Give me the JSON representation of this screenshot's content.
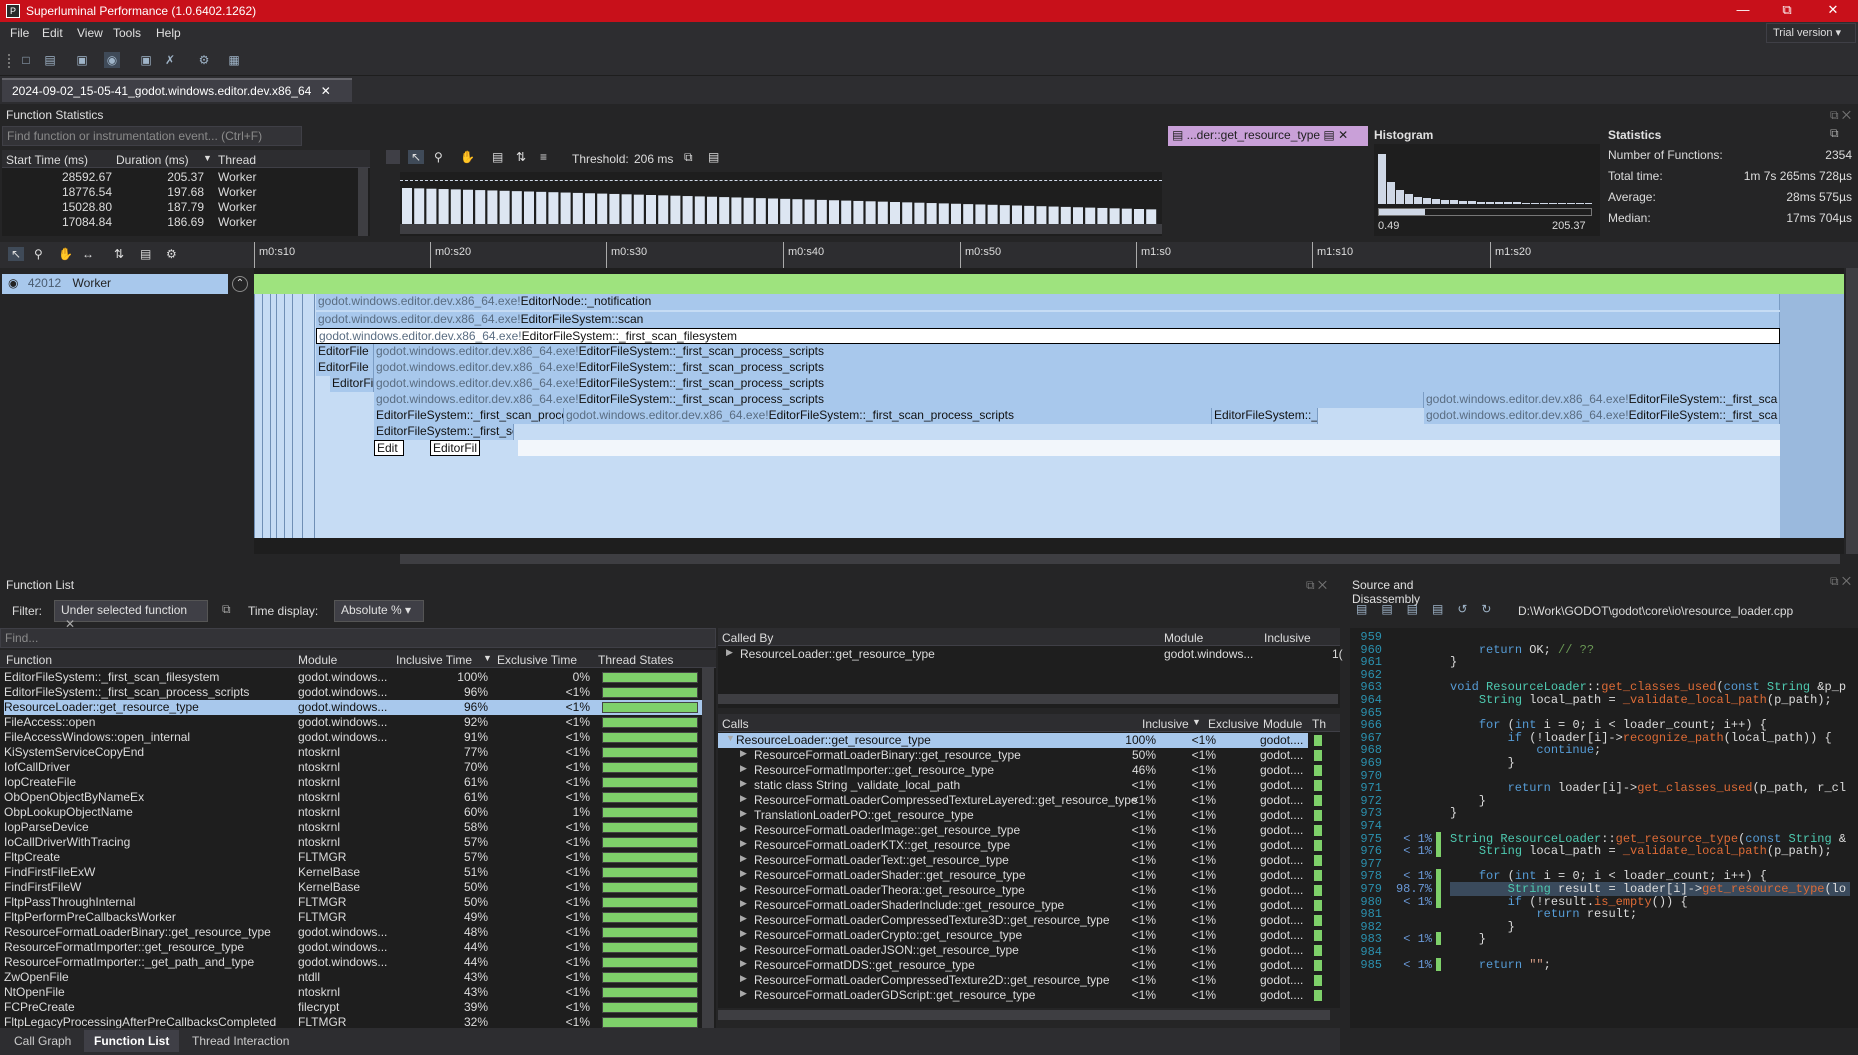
{
  "app": {
    "title": "Superluminal Performance (1.0.6402.1262)",
    "trial": "Trial version"
  },
  "menu": [
    "File",
    "Edit",
    "View",
    "Tools",
    "Help"
  ],
  "tab": {
    "label": "2024-09-02_15-05-41_godot.windows.editor.dev.x86_64"
  },
  "function_statistics": {
    "header": "Function Statistics",
    "search_placeholder": "Find function or instrumentation event... (Ctrl+F)",
    "columns": [
      "Start Time (ms)",
      "Duration (ms)",
      "Thread"
    ],
    "rows": [
      [
        "28592.67",
        "205.37",
        "Worker"
      ],
      [
        "18776.54",
        "197.68",
        "Worker"
      ],
      [
        "15028.80",
        "187.79",
        "Worker"
      ],
      [
        "17084.84",
        "186.69",
        "Worker"
      ]
    ],
    "threshold_label": "Threshold:",
    "threshold_value": "206 ms",
    "selected_fn": "...der::get_resource_type"
  },
  "histogram": {
    "title": "Histogram",
    "min": "0.49",
    "max": "205.37"
  },
  "statistics": {
    "title": "Statistics",
    "items": [
      [
        "Number of Functions:",
        "2354"
      ],
      [
        "Total time:",
        "1m 7s 265ms 728µs"
      ],
      [
        "Average:",
        "28ms 575µs"
      ],
      [
        "Median:",
        "17ms 704µs"
      ]
    ]
  },
  "timeline": {
    "ticks": [
      "m0:s10",
      "m0:s20",
      "m0:s30",
      "m0:s40",
      "m0:s50",
      "m1:s0",
      "m1:s10",
      "m1:s20"
    ],
    "thread_id": "42012",
    "thread_name": "Worker",
    "bars": [
      {
        "pre": "godot.windows.editor.dev.x86_64.exe!",
        "fn": "EditorNode::_notification"
      },
      {
        "pre": "godot.windows.editor.dev.x86_64.exe!",
        "fn": "EditorFileSystem::scan"
      },
      {
        "pre": "godot.windows.editor.dev.x86_64.exe!",
        "fn": "EditorFileSystem::_first_scan_filesystem"
      },
      {
        "pre": "godot.windows.editor.dev.x86_64.exe!",
        "fn": "EditorFileSystem::_first_scan_process_scripts"
      },
      {
        "pre": "godot.windows.editor.dev.x86_64.exe!",
        "fn": "EditorFileSystem::_first_scan_process_scripts"
      },
      {
        "pre": "godot.windows.editor.dev.x86_64.exe!",
        "fn": "EditorFileSystem::_first_scan_process_scripts"
      },
      {
        "pre": "godot.windows.editor.dev.x86_64.exe!",
        "fn": "EditorFileSystem::_first_scan_process_scripts"
      },
      {
        "pre": "godot.windows.editor.dev.x86_64.exe!",
        "fn": "EditorFileSystem::_first_scan_process_scripts"
      }
    ],
    "short": {
      "ef1": "EditorFile",
      "ef2": "EditorFile",
      "ef3": "EditorFi",
      "fsp": "EditorFileSystem::_first_scan_proce",
      "fs2": "EditorFileSystem::_",
      "fsc": "EditorFileSystem::_first_sc",
      "edit": "Edit",
      "efil": "EditorFil",
      "right1_pre": "godot.windows.editor.dev.x86_64.exe!",
      "right1_fn": "EditorFileSystem::_first_sca",
      "right2_fn": "EditorFileSystem::_first_sca"
    }
  },
  "function_list": {
    "header": "Function List",
    "filter_label": "Filter:",
    "filter_value": "Under selected function",
    "time_label": "Time display:",
    "time_value": "Absolute %",
    "find": "Find...",
    "columns": [
      "Function",
      "Module",
      "Inclusive Time",
      "Exclusive Time",
      "Thread States"
    ],
    "rows": [
      [
        "EditorFileSystem::_first_scan_filesystem",
        "godot.windows...",
        "100%",
        "0%"
      ],
      [
        "EditorFileSystem::_first_scan_process_scripts",
        "godot.windows...",
        "96%",
        "<1%"
      ],
      [
        "ResourceLoader::get_resource_type",
        "godot.windows...",
        "96%",
        "<1%"
      ],
      [
        "FileAccess::open",
        "godot.windows...",
        "92%",
        "<1%"
      ],
      [
        "FileAccessWindows::open_internal",
        "godot.windows...",
        "91%",
        "<1%"
      ],
      [
        "KiSystemServiceCopyEnd",
        "ntoskrnl",
        "77%",
        "<1%"
      ],
      [
        "IofCallDriver",
        "ntoskrnl",
        "70%",
        "<1%"
      ],
      [
        "IopCreateFile",
        "ntoskrnl",
        "61%",
        "<1%"
      ],
      [
        "ObOpenObjectByNameEx",
        "ntoskrnl",
        "61%",
        "<1%"
      ],
      [
        "ObpLookupObjectName",
        "ntoskrnl",
        "60%",
        "1%"
      ],
      [
        "IopParseDevice",
        "ntoskrnl",
        "58%",
        "<1%"
      ],
      [
        "IoCallDriverWithTracing",
        "ntoskrnl",
        "57%",
        "<1%"
      ],
      [
        "FltpCreate",
        "FLTMGR",
        "57%",
        "<1%"
      ],
      [
        "FindFirstFileExW",
        "KernelBase",
        "51%",
        "<1%"
      ],
      [
        "FindFirstFileW",
        "KernelBase",
        "50%",
        "<1%"
      ],
      [
        "FltpPassThroughInternal",
        "FLTMGR",
        "50%",
        "<1%"
      ],
      [
        "FltpPerformPreCallbacksWorker",
        "FLTMGR",
        "49%",
        "<1%"
      ],
      [
        "ResourceFormatLoaderBinary::get_resource_type",
        "godot.windows...",
        "48%",
        "<1%"
      ],
      [
        "ResourceFormatImporter::get_resource_type",
        "godot.windows...",
        "44%",
        "<1%"
      ],
      [
        "ResourceFormatImporter::_get_path_and_type",
        "godot.windows...",
        "44%",
        "<1%"
      ],
      [
        "ZwOpenFile",
        "ntdll",
        "43%",
        "<1%"
      ],
      [
        "NtOpenFile",
        "ntoskrnl",
        "43%",
        "<1%"
      ],
      [
        "FCPreCreate",
        "filecrypt",
        "39%",
        "<1%"
      ],
      [
        "FltpLegacyProcessingAfterPreCallbacksCompleted",
        "FLTMGR",
        "32%",
        "<1%"
      ]
    ]
  },
  "called_by": {
    "columns": [
      "Called By",
      "Module",
      "Inclusive Time"
    ],
    "row": [
      "ResourceLoader::get_resource_type",
      "godot.windows...",
      "1("
    ]
  },
  "calls": {
    "columns": [
      "Calls",
      "Inclusive",
      "Exclusive",
      "Module",
      "Th"
    ],
    "rows": [
      [
        "ResourceLoader::get_resource_type",
        "100%",
        "<1%",
        "godot...."
      ],
      [
        "ResourceFormatLoaderBinary::get_resource_type",
        "50%",
        "<1%",
        "godot...."
      ],
      [
        "ResourceFormatImporter::get_resource_type",
        "46%",
        "<1%",
        "godot...."
      ],
      [
        "static class String _validate_local_path",
        "<1%",
        "<1%",
        "godot...."
      ],
      [
        "ResourceFormatLoaderCompressedTextureLayered::get_resource_type",
        "<1%",
        "<1%",
        "godot...."
      ],
      [
        "TranslationLoaderPO::get_resource_type",
        "<1%",
        "<1%",
        "godot...."
      ],
      [
        "ResourceFormatLoaderImage::get_resource_type",
        "<1%",
        "<1%",
        "godot...."
      ],
      [
        "ResourceFormatLoaderKTX::get_resource_type",
        "<1%",
        "<1%",
        "godot...."
      ],
      [
        "ResourceFormatLoaderText::get_resource_type",
        "<1%",
        "<1%",
        "godot...."
      ],
      [
        "ResourceFormatLoaderShader::get_resource_type",
        "<1%",
        "<1%",
        "godot...."
      ],
      [
        "ResourceFormatLoaderTheora::get_resource_type",
        "<1%",
        "<1%",
        "godot...."
      ],
      [
        "ResourceFormatLoaderShaderInclude::get_resource_type",
        "<1%",
        "<1%",
        "godot...."
      ],
      [
        "ResourceFormatLoaderCompressedTexture3D::get_resource_type",
        "<1%",
        "<1%",
        "godot...."
      ],
      [
        "ResourceFormatLoaderCrypto::get_resource_type",
        "<1%",
        "<1%",
        "godot...."
      ],
      [
        "ResourceFormatLoaderJSON::get_resource_type",
        "<1%",
        "<1%",
        "godot...."
      ],
      [
        "ResourceFormatDDS::get_resource_type",
        "<1%",
        "<1%",
        "godot...."
      ],
      [
        "ResourceFormatLoaderCompressedTexture2D::get_resource_type",
        "<1%",
        "<1%",
        "godot...."
      ],
      [
        "ResourceFormatLoaderGDScript::get_resource_type",
        "<1%",
        "<1%",
        "godot...."
      ]
    ]
  },
  "source": {
    "header": "Source and Disassembly",
    "path": "D:\\Work\\GODOT\\godot\\core\\io\\resource_loader.cpp"
  },
  "bottom_tabs": [
    "Call Graph",
    "Function List",
    "Thread Interaction"
  ]
}
